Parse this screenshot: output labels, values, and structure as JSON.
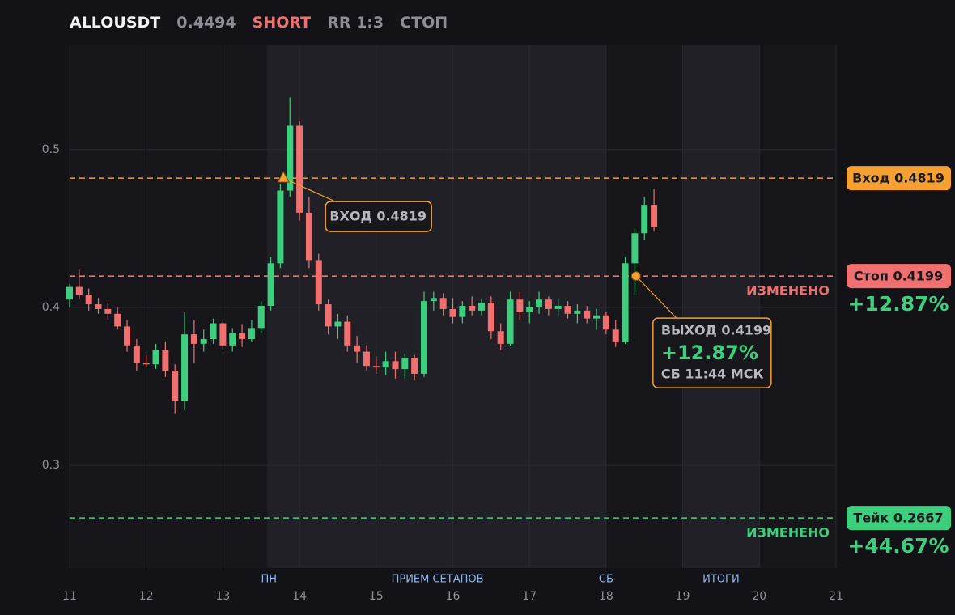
{
  "chart_data": {
    "type": "candlestick",
    "title": "ALLOUSDT",
    "price": 0.4494,
    "side": "SHORT",
    "rr": "RR 1:3",
    "status": "СТОП",
    "up_color": "#3ecf7e",
    "down_color": "#f07070",
    "grid": true,
    "xlim": [
      11,
      21
    ],
    "ylim": [
      0.235,
      0.566
    ],
    "xticks": [
      11,
      12,
      13,
      14,
      15,
      16,
      17,
      18,
      19,
      20,
      21
    ],
    "yticks": [
      0.3,
      0.4,
      0.5
    ],
    "x": [
      11.0,
      11.125,
      11.25,
      11.375,
      11.5,
      11.625,
      11.75,
      11.875,
      12.0,
      12.125,
      12.25,
      12.375,
      12.5,
      12.625,
      12.75,
      12.875,
      13.0,
      13.125,
      13.25,
      13.375,
      13.5,
      13.625,
      13.75,
      13.875,
      14.0,
      14.125,
      14.25,
      14.375,
      14.5,
      14.625,
      14.75,
      14.875,
      15.0,
      15.125,
      15.25,
      15.375,
      15.5,
      15.625,
      15.75,
      15.875,
      16.0,
      16.125,
      16.25,
      16.375,
      16.5,
      16.625,
      16.75,
      16.875,
      17.0,
      17.125,
      17.25,
      17.375,
      17.5,
      17.625,
      17.75,
      17.875,
      18.0,
      18.125,
      18.25,
      18.375,
      18.5,
      18.625
    ],
    "open": [
      0.405,
      0.413,
      0.408,
      0.402,
      0.399,
      0.396,
      0.388,
      0.376,
      0.365,
      0.364,
      0.373,
      0.36,
      0.341,
      0.383,
      0.377,
      0.38,
      0.39,
      0.376,
      0.384,
      0.38,
      0.387,
      0.401,
      0.428,
      0.474,
      0.515,
      0.46,
      0.43,
      0.402,
      0.388,
      0.391,
      0.376,
      0.372,
      0.363,
      0.362,
      0.366,
      0.361,
      0.368,
      0.358,
      0.404,
      0.406,
      0.399,
      0.394,
      0.401,
      0.398,
      0.403,
      0.385,
      0.377,
      0.405,
      0.397,
      0.4,
      0.405,
      0.399,
      0.401,
      0.396,
      0.398,
      0.393,
      0.395,
      0.386,
      0.378,
      0.428,
      0.447,
      0.465
    ],
    "high": [
      0.415,
      0.424,
      0.412,
      0.406,
      0.403,
      0.4,
      0.392,
      0.38,
      0.37,
      0.377,
      0.378,
      0.364,
      0.397,
      0.392,
      0.386,
      0.393,
      0.392,
      0.387,
      0.389,
      0.392,
      0.404,
      0.432,
      0.478,
      0.533,
      0.518,
      0.47,
      0.434,
      0.405,
      0.396,
      0.395,
      0.382,
      0.376,
      0.369,
      0.372,
      0.372,
      0.371,
      0.37,
      0.41,
      0.41,
      0.409,
      0.406,
      0.404,
      0.407,
      0.405,
      0.407,
      0.39,
      0.41,
      0.41,
      0.404,
      0.41,
      0.407,
      0.406,
      0.404,
      0.402,
      0.401,
      0.399,
      0.397,
      0.392,
      0.432,
      0.45,
      0.47,
      0.475
    ],
    "low": [
      0.4,
      0.405,
      0.398,
      0.396,
      0.392,
      0.386,
      0.372,
      0.36,
      0.362,
      0.361,
      0.356,
      0.333,
      0.335,
      0.365,
      0.372,
      0.377,
      0.373,
      0.372,
      0.375,
      0.378,
      0.384,
      0.398,
      0.425,
      0.47,
      0.455,
      0.425,
      0.398,
      0.383,
      0.38,
      0.372,
      0.365,
      0.36,
      0.358,
      0.357,
      0.355,
      0.355,
      0.354,
      0.356,
      0.398,
      0.395,
      0.39,
      0.39,
      0.395,
      0.395,
      0.38,
      0.373,
      0.376,
      0.392,
      0.39,
      0.396,
      0.395,
      0.395,
      0.393,
      0.39,
      0.39,
      0.386,
      0.383,
      0.375,
      0.377,
      0.408,
      0.443,
      0.448
    ],
    "close": [
      0.413,
      0.408,
      0.402,
      0.399,
      0.396,
      0.388,
      0.376,
      0.365,
      0.364,
      0.373,
      0.36,
      0.341,
      0.383,
      0.377,
      0.38,
      0.39,
      0.376,
      0.384,
      0.38,
      0.387,
      0.401,
      0.428,
      0.474,
      0.515,
      0.46,
      0.43,
      0.402,
      0.388,
      0.391,
      0.376,
      0.372,
      0.363,
      0.362,
      0.366,
      0.361,
      0.368,
      0.358,
      0.404,
      0.406,
      0.399,
      0.394,
      0.401,
      0.398,
      0.403,
      0.385,
      0.377,
      0.405,
      0.397,
      0.4,
      0.405,
      0.399,
      0.401,
      0.396,
      0.398,
      0.393,
      0.395,
      0.386,
      0.378,
      0.428,
      0.447,
      0.465,
      0.451
    ],
    "shaded": [
      [
        13.58,
        18.0
      ],
      [
        19.0,
        20.0
      ]
    ],
    "session_labels": [
      {
        "x": 13.6,
        "label": "ПН"
      },
      {
        "x": 15.8,
        "label": "ПРИЕМ СЕТАПОВ"
      },
      {
        "x": 18.0,
        "label": "СБ"
      },
      {
        "x": 19.5,
        "label": "ИТОГИ"
      }
    ],
    "levels": [
      {
        "label": "Вход 0.4819",
        "value": 0.4819,
        "color": "#f5a030"
      },
      {
        "label": "Стоп 0.4199",
        "value": 0.4199,
        "color": "#f07070",
        "pnl": "+12.87%",
        "note": "ИЗМЕНЕНО"
      },
      {
        "label": "Тейк 0.2667",
        "value": 0.2667,
        "color": "#3ecf7e",
        "pnl": "+44.67%",
        "note": "ИЗМЕНЕНО"
      }
    ],
    "entry": {
      "x": 13.79,
      "y": 0.4819,
      "label": "ВХОД 0.4819"
    },
    "exit": {
      "x": 18.39,
      "y": 0.4199,
      "label": "ВЫХОД 0.4199",
      "pnl": "+12.87%",
      "time": "СБ 11:44 МСК"
    }
  }
}
